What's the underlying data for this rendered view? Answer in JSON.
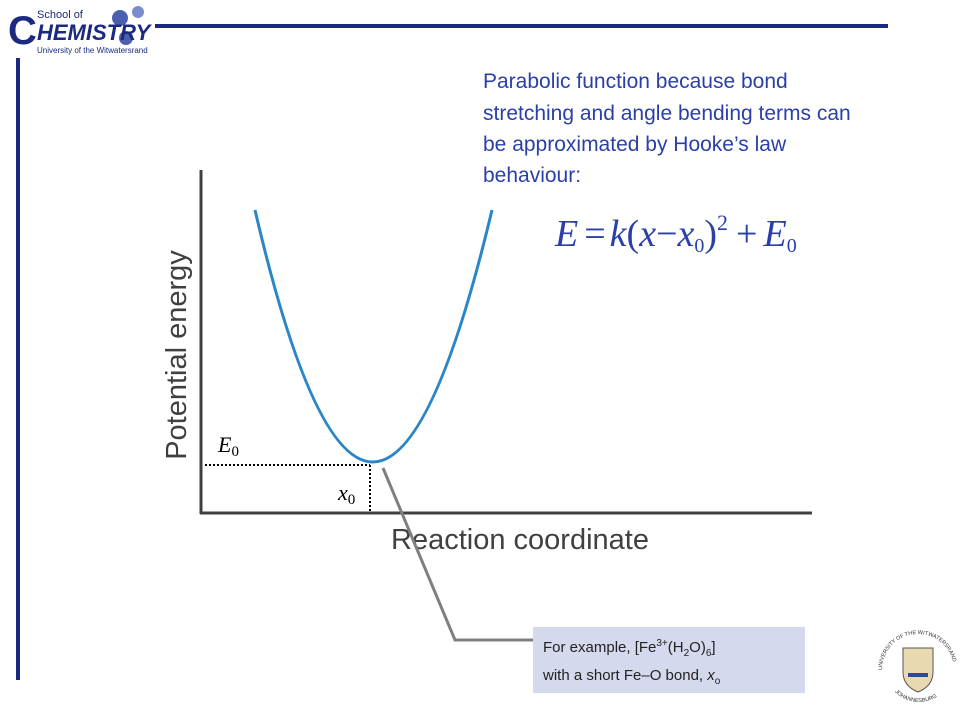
{
  "logo": {
    "small": "School of",
    "big": "HEMISTRY",
    "initial": "C",
    "university": "University of the Witwatersrand"
  },
  "description": [
    "Parabolic function because bond",
    "stretching and angle bending terms can",
    "be approximated by Hooke’s law",
    "behaviour:"
  ],
  "equation": {
    "lhs": "E",
    "eq": "=",
    "k": "k",
    "open": "(",
    "x": "x",
    "minus": "−",
    "x0": "x",
    "x0_sub": "0",
    "close": ")",
    "power": "2",
    "plus": "+",
    "E0": "E",
    "E0_sub": "0"
  },
  "graph": {
    "y_label": "Potential energy",
    "x_label": "Reaction coordinate",
    "E0": "E",
    "E0_sub": "0",
    "x0": "x",
    "x0_sub": "0"
  },
  "callout": {
    "line1": "For example, [Fe",
    "sup": "3+",
    "mid1": "(H",
    "sub1": "2",
    "mid2": "O)",
    "sub2": "6",
    "end": "]",
    "line2": "with a short Fe–O bond, ",
    "x": "x",
    "x_sub": "o"
  },
  "crest": {
    "top": "UNIVERSITY OF THE WITWATERSRAND",
    "bottom": "JOHANNESBURG"
  }
}
